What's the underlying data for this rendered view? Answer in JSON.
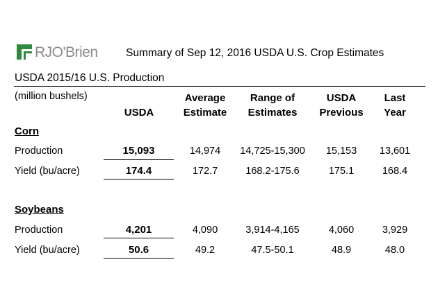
{
  "logo": {
    "brand": "RJO'Brien"
  },
  "title": "Summary of Sep 12, 2016 USDA U.S. Crop Estimates",
  "subheading": "USDA 2015/16 U.S. Production",
  "units_label": "(million bushels)",
  "columns": [
    {
      "line1": "",
      "line2": "USDA"
    },
    {
      "line1": "Average",
      "line2": "Estimate"
    },
    {
      "line1": "Range of",
      "line2": "Estimates"
    },
    {
      "line1": "USDA",
      "line2": "Previous"
    },
    {
      "line1": "Last",
      "line2": "Year"
    }
  ],
  "sections": [
    {
      "name": "Corn",
      "rows": [
        {
          "label": "Production",
          "usda": "15,093",
          "average": "14,974",
          "range": "14,725-15,300",
          "previous": "15,153",
          "last_year": "13,601"
        },
        {
          "label": "Yield (bu/acre)",
          "usda": "174.4",
          "average": "172.7",
          "range": "168.2-175.6",
          "previous": "175.1",
          "last_year": "168.4"
        }
      ]
    },
    {
      "name": "Soybeans",
      "rows": [
        {
          "label": "Production",
          "usda": "4,201",
          "average": "4,090",
          "range": "3,914-4,165",
          "previous": "4,060",
          "last_year": "3,929"
        },
        {
          "label": "Yield (bu/acre)",
          "usda": "50.6",
          "average": "49.2",
          "range": "47.5-50.1",
          "previous": "48.9",
          "last_year": "48.0"
        }
      ]
    }
  ]
}
